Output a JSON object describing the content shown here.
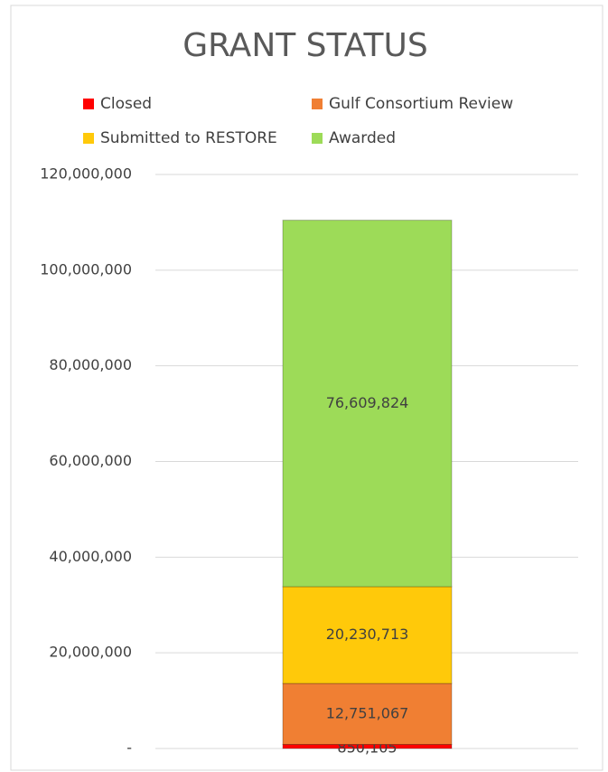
{
  "chart_data": {
    "type": "stacked_bar",
    "title": "GRANT STATUS",
    "categories": [
      null
    ],
    "series": [
      {
        "name": "Closed",
        "color": "#ff0000",
        "values": [
          850105
        ],
        "value_labels": [
          "850,105"
        ]
      },
      {
        "name": "Gulf Consortium Review",
        "color": "#f07f33",
        "values": [
          12751067
        ],
        "value_labels": [
          "12,751,067"
        ]
      },
      {
        "name": "Submitted to RESTORE",
        "color": "#ffc90a",
        "values": [
          20230713
        ],
        "value_labels": [
          "20,230,713"
        ]
      },
      {
        "name": "Awarded",
        "color": "#9ddb58",
        "values": [
          76609824
        ],
        "value_labels": [
          "76,609,824"
        ]
      }
    ],
    "ylim": [
      0,
      120000000
    ],
    "yticks": [
      {
        "value": 0,
        "label": "-"
      },
      {
        "value": 20000000,
        "label": "20,000,000"
      },
      {
        "value": 40000000,
        "label": "40,000,000"
      },
      {
        "value": 60000000,
        "label": "60,000,000"
      },
      {
        "value": 80000000,
        "label": "80,000,000"
      },
      {
        "value": 100000000,
        "label": "100,000,000"
      },
      {
        "value": 120000000,
        "label": "120,000,000"
      }
    ],
    "grid": true,
    "legend": "top"
  }
}
